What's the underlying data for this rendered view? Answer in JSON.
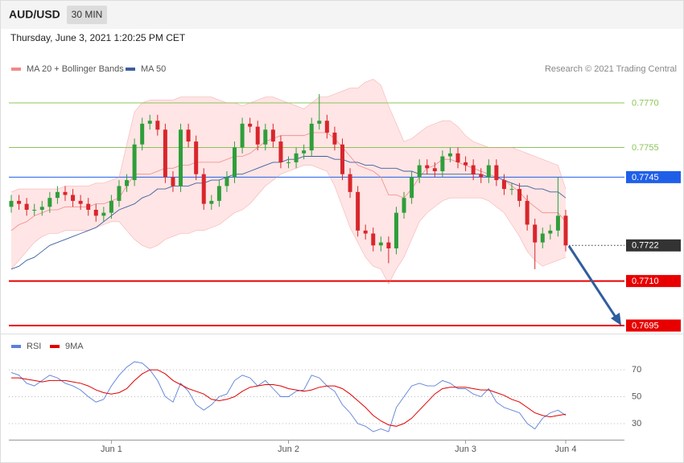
{
  "chart_data": [
    {
      "type": "candlestick",
      "title": "AUD/USD",
      "timeframe": "30 MIN",
      "subtitle": "Thursday, June 3, 2021 1:20:25 PM CET",
      "source": "Research © 2021 Trading Central",
      "up_color": "#2f9e3a",
      "down_color": "#d8262c",
      "categories": [
        null,
        null,
        null,
        null,
        null,
        null,
        null,
        null,
        null,
        null,
        null,
        null,
        null,
        "Jun 1",
        null,
        null,
        null,
        null,
        null,
        null,
        null,
        null,
        null,
        null,
        null,
        null,
        null,
        null,
        null,
        null,
        null,
        null,
        null,
        null,
        null,
        null,
        "Jun 2",
        null,
        null,
        null,
        null,
        null,
        null,
        null,
        null,
        null,
        null,
        null,
        null,
        null,
        null,
        null,
        null,
        null,
        null,
        null,
        null,
        null,
        null,
        "Jun 3",
        null,
        null,
        null,
        null,
        null,
        null,
        null,
        null,
        null,
        null,
        null,
        null,
        "Jun 4"
      ],
      "open": [
        0.7735,
        0.7737,
        0.7736,
        0.7734,
        0.7734,
        0.7735,
        0.7738,
        0.774,
        0.7739,
        0.7737,
        0.7736,
        0.7734,
        0.7732,
        0.7733,
        0.7737,
        0.7742,
        0.7744,
        0.7756,
        0.7763,
        0.7764,
        0.7761,
        0.7745,
        0.7742,
        0.7761,
        0.7757,
        0.7746,
        0.7736,
        0.7737,
        0.7742,
        0.7745,
        0.7755,
        0.7763,
        0.7762,
        0.7756,
        0.7761,
        0.7757,
        0.775,
        0.775,
        0.7753,
        0.7754,
        0.7763,
        0.7764,
        0.776,
        0.7756,
        0.7746,
        0.774,
        0.7727,
        0.7726,
        0.7722,
        0.7723,
        0.7721,
        0.7733,
        0.7738,
        0.7745,
        0.7749,
        0.7748,
        0.7747,
        0.7752,
        0.7753,
        0.775,
        0.7749,
        0.7746,
        0.7745,
        0.7749,
        0.7744,
        0.7741,
        0.7741,
        0.7737,
        0.7729,
        0.7723,
        0.7726,
        0.7727,
        0.7732
      ],
      "high": [
        0.7739,
        0.7739,
        0.7738,
        0.7736,
        0.7737,
        0.774,
        0.7742,
        0.7742,
        0.7741,
        0.7739,
        0.7738,
        0.7736,
        0.7735,
        0.7739,
        0.7744,
        0.7746,
        0.7758,
        0.7765,
        0.7766,
        0.7766,
        0.7763,
        0.7747,
        0.7763,
        0.7763,
        0.7759,
        0.7748,
        0.7739,
        0.7744,
        0.7747,
        0.7757,
        0.7765,
        0.7765,
        0.7764,
        0.7763,
        0.7763,
        0.7759,
        0.7752,
        0.7755,
        0.7756,
        0.7765,
        0.7773,
        0.7766,
        0.7762,
        0.7758,
        0.7748,
        0.7742,
        0.7729,
        0.7728,
        0.7725,
        0.7725,
        0.7735,
        0.774,
        0.7747,
        0.7751,
        0.7751,
        0.775,
        0.7754,
        0.7755,
        0.7755,
        0.7752,
        0.7751,
        0.7748,
        0.7751,
        0.7751,
        0.7746,
        0.7743,
        0.7743,
        0.7739,
        0.7731,
        0.7728,
        0.7729,
        0.7745,
        0.7734
      ],
      "low": [
        0.7733,
        0.7734,
        0.7732,
        0.7732,
        0.7732,
        0.7733,
        0.7736,
        0.7737,
        0.7735,
        0.7734,
        0.7732,
        0.773,
        0.773,
        0.7731,
        0.7735,
        0.774,
        0.7742,
        0.7754,
        0.7761,
        0.7759,
        0.7743,
        0.774,
        0.774,
        0.7755,
        0.7744,
        0.7734,
        0.7734,
        0.7735,
        0.774,
        0.7743,
        0.7753,
        0.776,
        0.7754,
        0.7754,
        0.7755,
        0.7748,
        0.7748,
        0.7748,
        0.7751,
        0.7752,
        0.7761,
        0.7758,
        0.7754,
        0.7744,
        0.7738,
        0.7725,
        0.7724,
        0.772,
        0.772,
        0.7716,
        0.7719,
        0.7731,
        0.7736,
        0.7743,
        0.7746,
        0.7745,
        0.7745,
        0.775,
        0.7748,
        0.7747,
        0.7744,
        0.7743,
        0.7743,
        0.7742,
        0.7739,
        0.7739,
        0.7735,
        0.7727,
        0.7714,
        0.7721,
        0.7724,
        0.7725,
        0.772
      ],
      "close": [
        0.7737,
        0.7736,
        0.7734,
        0.7734,
        0.7735,
        0.7738,
        0.774,
        0.7739,
        0.7737,
        0.7736,
        0.7734,
        0.7732,
        0.7733,
        0.7737,
        0.7742,
        0.7744,
        0.7756,
        0.7763,
        0.7764,
        0.7761,
        0.7745,
        0.7742,
        0.7761,
        0.7757,
        0.7746,
        0.7736,
        0.7737,
        0.7742,
        0.7745,
        0.7755,
        0.7763,
        0.7762,
        0.7756,
        0.7761,
        0.7757,
        0.775,
        0.775,
        0.7753,
        0.7754,
        0.7763,
        0.7764,
        0.776,
        0.7756,
        0.7746,
        0.774,
        0.7727,
        0.7726,
        0.7722,
        0.7723,
        0.7721,
        0.7733,
        0.7738,
        0.7745,
        0.7749,
        0.7748,
        0.7747,
        0.7752,
        0.7753,
        0.775,
        0.7749,
        0.7746,
        0.7745,
        0.7749,
        0.7744,
        0.7741,
        0.7741,
        0.7737,
        0.7729,
        0.7723,
        0.7726,
        0.7727,
        0.7732,
        0.7722
      ],
      "series": [
        {
          "name": "MA 20 + Bollinger Bands",
          "color": "#f08a8a",
          "band_color": "#ffe1e1",
          "values": [
            0.7727,
            0.7729,
            0.773,
            0.7732,
            0.7733,
            0.7734,
            0.7734,
            0.7735,
            0.7735,
            0.7735,
            0.7735,
            0.7736,
            0.7736,
            0.7737,
            0.7738,
            0.7742,
            0.7746,
            0.7746,
            0.7746,
            0.7747,
            0.7748,
            0.7748,
            0.7749,
            0.7749,
            0.775,
            0.775,
            0.775,
            0.775,
            0.7751,
            0.7752,
            0.7752,
            0.7753,
            0.7755,
            0.7757,
            0.7758,
            0.7759,
            0.7759,
            0.7759,
            0.7759,
            0.776,
            0.776,
            0.776,
            0.7758,
            0.7755,
            0.7752,
            0.7749,
            0.7748,
            0.7747,
            0.7745,
            0.7739,
            0.7739,
            0.7738,
            0.7741,
            0.7745,
            0.7748,
            0.7749,
            0.7751,
            0.7751,
            0.775,
            0.7749,
            0.7748,
            0.7747,
            0.7746,
            0.7745,
            0.7744,
            0.7742,
            0.774,
            0.7737,
            0.7735,
            0.7733,
            0.7733,
            0.7733,
            0.773
          ],
          "upper": [
            0.774,
            0.7741,
            0.7741,
            0.7741,
            0.7741,
            0.7741,
            0.7741,
            0.7742,
            0.7742,
            0.7742,
            0.7742,
            0.7743,
            0.7743,
            0.7744,
            0.7745,
            0.7756,
            0.7767,
            0.777,
            0.7771,
            0.7771,
            0.7771,
            0.7771,
            0.7772,
            0.7772,
            0.7772,
            0.7772,
            0.7772,
            0.7771,
            0.777,
            0.777,
            0.7769,
            0.777,
            0.7771,
            0.7772,
            0.7772,
            0.7771,
            0.777,
            0.7769,
            0.7768,
            0.777,
            0.7772,
            0.7772,
            0.7773,
            0.7774,
            0.7775,
            0.7775,
            0.7777,
            0.7778,
            0.7776,
            0.7769,
            0.7763,
            0.7757,
            0.7758,
            0.776,
            0.7762,
            0.7763,
            0.7764,
            0.7764,
            0.7762,
            0.7759,
            0.7757,
            0.7756,
            0.7755,
            0.7755,
            0.7755,
            0.7755,
            0.7754,
            0.7753,
            0.7752,
            0.7751,
            0.775,
            0.7749,
            0.7741
          ],
          "lower": [
            0.7714,
            0.7717,
            0.772,
            0.7723,
            0.7725,
            0.7726,
            0.7726,
            0.7727,
            0.7727,
            0.7727,
            0.7727,
            0.7728,
            0.7729,
            0.773,
            0.773,
            0.7727,
            0.7724,
            0.7722,
            0.7721,
            0.7722,
            0.7724,
            0.7725,
            0.7726,
            0.7726,
            0.7727,
            0.7727,
            0.7728,
            0.7729,
            0.7731,
            0.7733,
            0.7734,
            0.7736,
            0.7739,
            0.7742,
            0.7744,
            0.7746,
            0.7747,
            0.7748,
            0.7749,
            0.7749,
            0.7748,
            0.7747,
            0.7742,
            0.7735,
            0.7728,
            0.7723,
            0.7718,
            0.7715,
            0.7714,
            0.7709,
            0.7714,
            0.7718,
            0.7724,
            0.773,
            0.7733,
            0.7735,
            0.7737,
            0.7738,
            0.7738,
            0.7738,
            0.7738,
            0.7738,
            0.7737,
            0.7735,
            0.7733,
            0.7729,
            0.7725,
            0.772,
            0.7717,
            0.7715,
            0.7716,
            0.7717,
            0.7718
          ]
        },
        {
          "name": "MA 50",
          "color": "#3d5f9e",
          "values": [
            0.7714,
            0.7715,
            0.7717,
            0.7718,
            0.772,
            0.7722,
            0.7723,
            0.7724,
            0.7725,
            0.7726,
            0.7727,
            0.7728,
            0.773,
            0.7732,
            0.7734,
            0.7735,
            0.7736,
            0.7738,
            0.7739,
            0.7741,
            0.7741,
            0.7742,
            0.7742,
            0.7742,
            0.7743,
            0.7743,
            0.7744,
            0.7744,
            0.7745,
            0.7746,
            0.7746,
            0.7747,
            0.7748,
            0.7749,
            0.775,
            0.775,
            0.7751,
            0.7751,
            0.7752,
            0.7752,
            0.7752,
            0.7752,
            0.7751,
            0.7751,
            0.775,
            0.775,
            0.7749,
            0.7749,
            0.7748,
            0.7748,
            0.7748,
            0.7747,
            0.7747,
            0.7746,
            0.7746,
            0.7746,
            0.7746,
            0.7746,
            0.7746,
            0.7746,
            0.7746,
            0.7746,
            0.7745,
            0.7745,
            0.7744,
            0.7743,
            0.7742,
            0.7742,
            0.7741,
            0.7741,
            0.774,
            0.774,
            0.7738
          ]
        }
      ],
      "ylim": [
        0.7693,
        0.7778
      ],
      "yticks": [
        {
          "value": 0.777,
          "label": "0.7770",
          "color": "#8cc45a",
          "boxed": false,
          "line": "solid",
          "thickness": 1
        },
        {
          "value": 0.7755,
          "label": "0.7755",
          "color": "#8cc45a",
          "boxed": false,
          "line": "solid",
          "thickness": 1
        },
        {
          "value": 0.7745,
          "label": "0.7745",
          "color": "#1f5fe8",
          "boxed": true,
          "line": "solid",
          "thickness": 1
        },
        {
          "value": 0.7722,
          "label": "0.7722",
          "color": "#333333",
          "boxed": true,
          "line": "dotted",
          "thickness": 1
        },
        {
          "value": 0.771,
          "label": "0.7710",
          "color": "#e80000",
          "boxed": true,
          "line": "solid",
          "thickness": 2
        },
        {
          "value": 0.7695,
          "label": "0.7695",
          "color": "#e80000",
          "boxed": true,
          "line": "solid",
          "thickness": 2
        }
      ],
      "grid": false
    },
    {
      "type": "line",
      "series": [
        {
          "name": "RSI",
          "color": "#5b80d8",
          "values": [
            68,
            66,
            60,
            58,
            62,
            66,
            64,
            60,
            58,
            55,
            50,
            46,
            48,
            58,
            66,
            72,
            76,
            75,
            70,
            62,
            50,
            46,
            60,
            54,
            44,
            40,
            44,
            50,
            52,
            62,
            66,
            64,
            58,
            62,
            56,
            50,
            50,
            54,
            55,
            66,
            64,
            58,
            54,
            44,
            38,
            30,
            28,
            24,
            26,
            24,
            42,
            50,
            58,
            60,
            58,
            58,
            62,
            60,
            56,
            56,
            52,
            50,
            56,
            46,
            42,
            40,
            38,
            30,
            26,
            34,
            38,
            40,
            36
          ]
        },
        {
          "name": "9MA",
          "color": "#e00000",
          "values": [
            64,
            64,
            63,
            62,
            61,
            62,
            62,
            62,
            61,
            60,
            58,
            55,
            53,
            52,
            53,
            56,
            62,
            67,
            70,
            70,
            67,
            62,
            59,
            56,
            54,
            52,
            48,
            47,
            48,
            50,
            54,
            57,
            58,
            59,
            59,
            58,
            56,
            55,
            54,
            55,
            57,
            58,
            58,
            56,
            52,
            47,
            42,
            36,
            32,
            29,
            28,
            30,
            34,
            40,
            46,
            52,
            56,
            57,
            57,
            57,
            56,
            55,
            55,
            53,
            51,
            48,
            46,
            42,
            38,
            36,
            35,
            36,
            37
          ]
        }
      ],
      "ylim": [
        18,
        82
      ],
      "yticks": [
        70,
        50,
        30
      ],
      "grid": true
    }
  ]
}
